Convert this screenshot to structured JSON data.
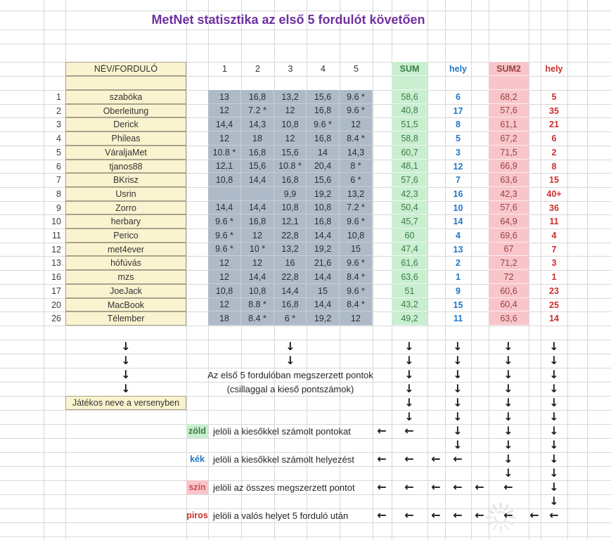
{
  "title": "MetNet statisztika az első 5 fordulót követően",
  "table": {
    "corner_header": "NÉV/FORDULÓ",
    "round_headers": [
      "1",
      "2",
      "3",
      "4",
      "5"
    ],
    "sum_header": "SUM",
    "hely_header": "hely",
    "sum2_header": "SUM2",
    "hely2_header": "hely",
    "rows": [
      {
        "rank": "1",
        "name": "szabóka",
        "rounds": [
          "13",
          "16,8",
          "13,2",
          "15,6",
          "9.6 *"
        ],
        "sum": "58,6",
        "hely": "6",
        "sum2": "68,2",
        "hely2": "5"
      },
      {
        "rank": "2",
        "name": "Oberleitung",
        "rounds": [
          "12",
          "7.2 *",
          "12",
          "16,8",
          "9.6 *"
        ],
        "sum": "40,8",
        "hely": "17",
        "sum2": "57,6",
        "hely2": "35"
      },
      {
        "rank": "3",
        "name": "Derick",
        "rounds": [
          "14,4",
          "14,3",
          "10,8",
          "9.6 *",
          "12"
        ],
        "sum": "51,5",
        "hely": "8",
        "sum2": "61,1",
        "hely2": "21"
      },
      {
        "rank": "4",
        "name": "Phileas",
        "rounds": [
          "12",
          "18",
          "12",
          "16,8",
          "8.4 *"
        ],
        "sum": "58,8",
        "hely": "5",
        "sum2": "67,2",
        "hely2": "6"
      },
      {
        "rank": "5",
        "name": "VáraljaMet",
        "rounds": [
          "10.8 *",
          "16,8",
          "15,6",
          "14",
          "14,3"
        ],
        "sum": "60,7",
        "hely": "3",
        "sum2": "71,5",
        "hely2": "2"
      },
      {
        "rank": "6",
        "name": "tjanos88",
        "rounds": [
          "12,1",
          "15,6",
          "10.8 *",
          "20,4",
          "8 *"
        ],
        "sum": "48,1",
        "hely": "12",
        "sum2": "66,9",
        "hely2": "8"
      },
      {
        "rank": "7",
        "name": "BKrisz",
        "rounds": [
          "10,8",
          "14,4",
          "16,8",
          "15,6",
          "6 *"
        ],
        "sum": "57,6",
        "hely": "7",
        "sum2": "63,6",
        "hely2": "15"
      },
      {
        "rank": "8",
        "name": "Usrin",
        "rounds": [
          "",
          "",
          "9,9",
          "19,2",
          "13,2"
        ],
        "sum": "42,3",
        "hely": "16",
        "sum2": "42,3",
        "hely2": "40+"
      },
      {
        "rank": "9",
        "name": "Zorro",
        "rounds": [
          "14,4",
          "14,4",
          "10,8",
          "10,8",
          "7.2 *"
        ],
        "sum": "50,4",
        "hely": "10",
        "sum2": "57,6",
        "hely2": "36"
      },
      {
        "rank": "10",
        "name": "herbary",
        "rounds": [
          "9.6 *",
          "16,8",
          "12,1",
          "16,8",
          "9.6 *"
        ],
        "sum": "45,7",
        "hely": "14",
        "sum2": "64,9",
        "hely2": "11"
      },
      {
        "rank": "11",
        "name": "Perico",
        "rounds": [
          "9.6 *",
          "12",
          "22,8",
          "14,4",
          "10,8"
        ],
        "sum": "60",
        "hely": "4",
        "sum2": "69,6",
        "hely2": "4"
      },
      {
        "rank": "12",
        "name": "met4ever",
        "rounds": [
          "9.6 *",
          "10 *",
          "13,2",
          "19,2",
          "15"
        ],
        "sum": "47,4",
        "hely": "13",
        "sum2": "67",
        "hely2": "7"
      },
      {
        "rank": "13",
        "name": "hófúvás",
        "rounds": [
          "12",
          "12",
          "16",
          "21,6",
          "9.6 *"
        ],
        "sum": "61,6",
        "hely": "2",
        "sum2": "71,2",
        "hely2": "3"
      },
      {
        "rank": "16",
        "name": "mzs",
        "rounds": [
          "12",
          "14,4",
          "22,8",
          "14,4",
          "8.4 *"
        ],
        "sum": "63,6",
        "hely": "1",
        "sum2": "72",
        "hely2": "1"
      },
      {
        "rank": "17",
        "name": "JoeJack",
        "rounds": [
          "10,8",
          "10,8",
          "14,4",
          "15",
          "9.6 *"
        ],
        "sum": "51",
        "hely": "9",
        "sum2": "60,6",
        "hely2": "23"
      },
      {
        "rank": "20",
        "name": "MacBook",
        "rounds": [
          "12",
          "8.8 *",
          "16,8",
          "14,4",
          "8.4 *"
        ],
        "sum": "43,2",
        "hely": "15",
        "sum2": "60,4",
        "hely2": "25"
      },
      {
        "rank": "26",
        "name": "Télember",
        "rounds": [
          "18",
          "8.4 *",
          "6 *",
          "19,2",
          "12"
        ],
        "sum": "49,2",
        "hely": "11",
        "sum2": "63,6",
        "hely2": "14"
      }
    ]
  },
  "annotations": {
    "arrow_down_icon": "↓",
    "arrow_left_icon": "←",
    "note_line1": "Az első 5 fordulóban megszerzett pontok",
    "note_line2": "(csillaggal a kieső pontszámok)",
    "player_name_note": "Játékos neve a versenyben",
    "legend": [
      {
        "label": "zöld",
        "text": "jelöli a kiesőkkel számolt pontokat"
      },
      {
        "label": "kék",
        "text": "jelöli a kiesőkkel számolt helyezést"
      },
      {
        "label": "szín",
        "text": "jelöli az összes megszerzett pontot"
      },
      {
        "label": "piros",
        "text": "jelöli a valós helyet 5 forduló után"
      }
    ]
  },
  "colors": {
    "title_purple": "#7030A0",
    "yellow_fill": "#FAF3CF",
    "gray_blue_fill": "#AEBAC7",
    "green_fill": "#C9EED0",
    "green_text": "#3A7D44",
    "blue_text": "#1F78C8",
    "pink_fill": "#F8C6CA",
    "dark_red_text": "#9C4040",
    "red_text": "#CB2F2F",
    "gridline": "#D8D8D8"
  }
}
